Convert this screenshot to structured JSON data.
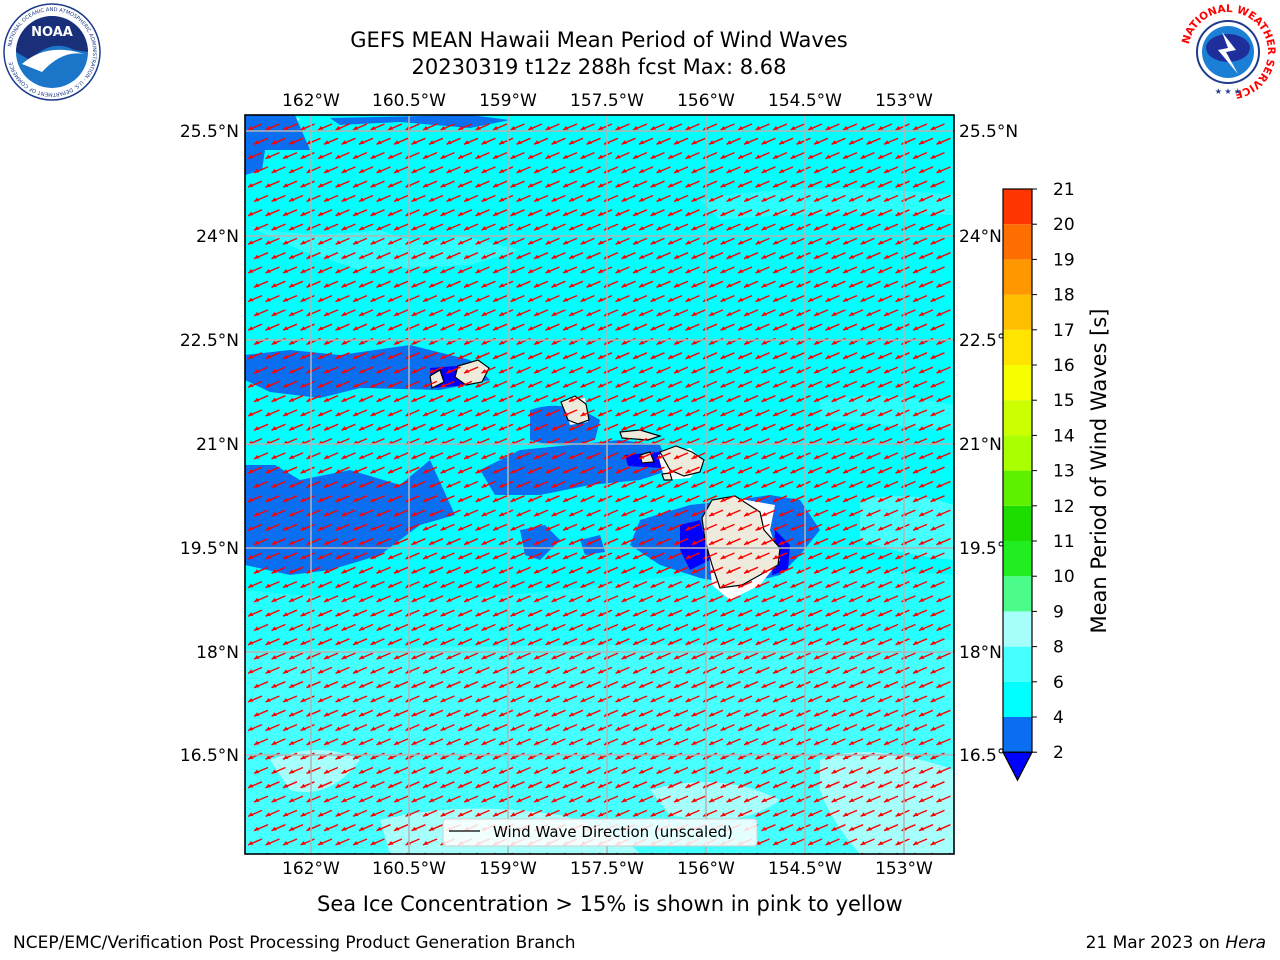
{
  "header": {
    "title_line1": "GEFS MEAN Hawaii Mean Period of Wind Waves",
    "title_line2": "20230319 t12z 288h fcst   Max: 8.68"
  },
  "logos": {
    "left": "NOAA",
    "left_ring": "NATIONAL OCEANIC AND ATMOSPHERIC ADMINISTRATION · U.S. DEPARTMENT OF COMMERCE",
    "right_ring": "NATIONAL WEATHER SERVICE"
  },
  "map": {
    "lon_ticks": [
      "162°W",
      "160.5°W",
      "159°W",
      "157.5°W",
      "156°W",
      "154.5°W",
      "153°W"
    ],
    "lat_ticks": [
      "25.5°N",
      "24°N",
      "22.5°N",
      "21°N",
      "19.5°N",
      "18°N",
      "16.5°N"
    ],
    "legend_label": "Wind Wave Direction (unscaled)",
    "arrow_color": "#ff0000",
    "land_color": "#efebdc",
    "colors": {
      "blue_2_4": "#0a6ef0",
      "cyan_4_6": "#00ffff",
      "cyan_6_8": "#46ffff",
      "cyan_8_9": "#a6fffb",
      "under_2": "#0000ff"
    }
  },
  "colorbar": {
    "title": "Mean Period of Wind Waves [s]",
    "ticks": [
      "2",
      "4",
      "6",
      "8",
      "9",
      "10",
      "11",
      "12",
      "13",
      "14",
      "15",
      "16",
      "17",
      "18",
      "19",
      "20",
      "21"
    ],
    "segment_colors": [
      "#0a6ef0",
      "#00ffff",
      "#46ffff",
      "#a6fffb",
      "#4cfc8a",
      "#20ee20",
      "#1cdc00",
      "#5ff000",
      "#aaff00",
      "#ccff00",
      "#f5ff00",
      "#ffe400",
      "#ffbf00",
      "#ff9800",
      "#ff6e00",
      "#ff3600",
      "#ff0000"
    ],
    "under_color": "#0000ff"
  },
  "footer": {
    "sea_ice_note": "Sea Ice Concentration > 15% is shown in pink to yellow",
    "left": "NCEP/EMC/Verification Post Processing Product Generation Branch",
    "right_date": "21 Mar 2023 on ",
    "right_host": "Hera"
  }
}
